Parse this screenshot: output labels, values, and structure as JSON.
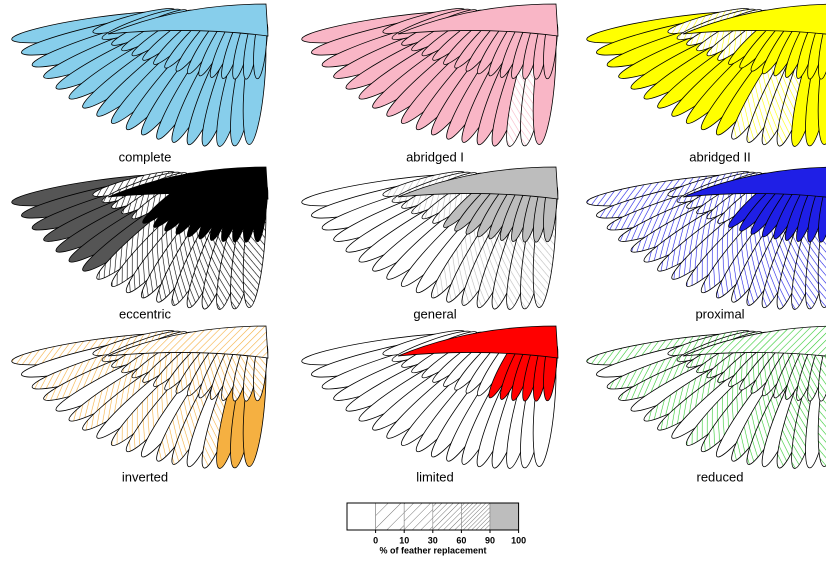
{
  "panels": [
    {
      "label": "complete",
      "color": "#87ceeb"
    },
    {
      "label": "abridged I",
      "color": "#f9b6c6"
    },
    {
      "label": "abridged II",
      "color": "#ffff00"
    },
    {
      "label": "eccentric",
      "color": "#000000"
    },
    {
      "label": "general",
      "color": "#bdbdbd"
    },
    {
      "label": "proximal",
      "color": "#1f1fe6"
    },
    {
      "label": "inverted",
      "color": "#f5b041"
    },
    {
      "label": "limited",
      "color": "#ff0000"
    },
    {
      "label": "reduced",
      "color": "#33cc33"
    }
  ],
  "legend": {
    "title": "% of feather replacement",
    "ticks": [
      0,
      10,
      30,
      60,
      90,
      100
    ]
  }
}
